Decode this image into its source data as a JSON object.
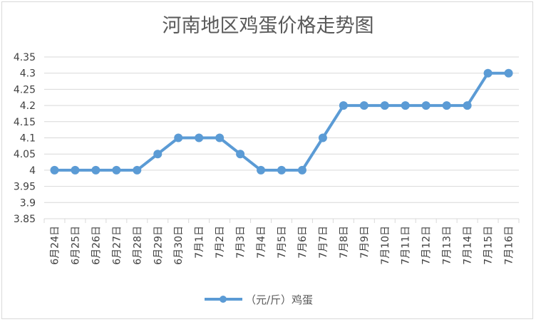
{
  "chart_data": {
    "type": "line",
    "title": "河南地区鸡蛋价格走势图",
    "categories": [
      "6月24日",
      "6月25日",
      "6月26日",
      "6月27日",
      "6月28日",
      "6月29日",
      "6月30日",
      "7月1日",
      "7月2日",
      "7月3日",
      "7月4日",
      "7月5日",
      "7月6日",
      "7月7日",
      "7月8日",
      "7月9日",
      "7月10日",
      "7月11日",
      "7月12日",
      "7月13日",
      "7月14日",
      "7月15日",
      "7月16日"
    ],
    "series": [
      {
        "name": "（元/斤）鸡蛋",
        "color": "#5b9bd5",
        "values": [
          4.0,
          4.0,
          4.0,
          4.0,
          4.0,
          4.05,
          4.1,
          4.1,
          4.1,
          4.05,
          4.0,
          4.0,
          4.0,
          4.1,
          4.2,
          4.2,
          4.2,
          4.2,
          4.2,
          4.2,
          4.2,
          4.3,
          4.3
        ]
      }
    ],
    "ylim": [
      3.85,
      4.35
    ],
    "yticks": [
      "4.35",
      "4.3",
      "4.25",
      "4.2",
      "4.15",
      "4.1",
      "4.05",
      "4",
      "3.95",
      "3.9",
      "3.85"
    ],
    "grid": true,
    "legend_position": "bottom"
  }
}
